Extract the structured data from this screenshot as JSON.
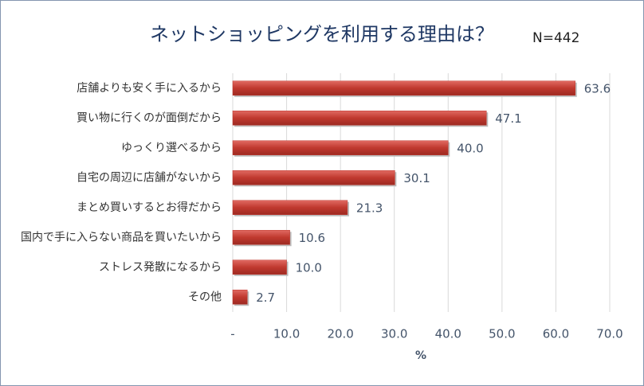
{
  "chart_data": {
    "type": "bar",
    "orientation": "horizontal",
    "title": "ネットショッピングを利用する理由は？",
    "annotation": "N=442",
    "x_label": "%",
    "categories": [
      "店舗よりも安く手に入るから",
      "買い物に行くのが面倒だから",
      "ゆっくり選べるから",
      "自宅の周辺に店舗がないから",
      "まとめ買いするとお得だから",
      "国内で手に入らない商品を買いたいから",
      "ストレス発散になるから",
      "その他"
    ],
    "values": [
      63.6,
      47.1,
      40.0,
      30.1,
      21.3,
      10.6,
      10.0,
      2.7
    ],
    "value_labels": [
      "63.6",
      "47.1",
      "40.0",
      "30.1",
      "21.3",
      "10.6",
      "10.0",
      "2.7"
    ],
    "color": "#c0392f",
    "xlim": [
      0,
      70
    ],
    "xticks": [
      {
        "value": 0,
        "label": "-"
      },
      {
        "value": 10,
        "label": "10.0"
      },
      {
        "value": 20,
        "label": "20.0"
      },
      {
        "value": 30,
        "label": "30.0"
      },
      {
        "value": 40,
        "label": "40.0"
      },
      {
        "value": 50,
        "label": "50.0"
      },
      {
        "value": 60,
        "label": "60.0"
      },
      {
        "value": 70,
        "label": "70.0"
      }
    ],
    "grid": true
  }
}
